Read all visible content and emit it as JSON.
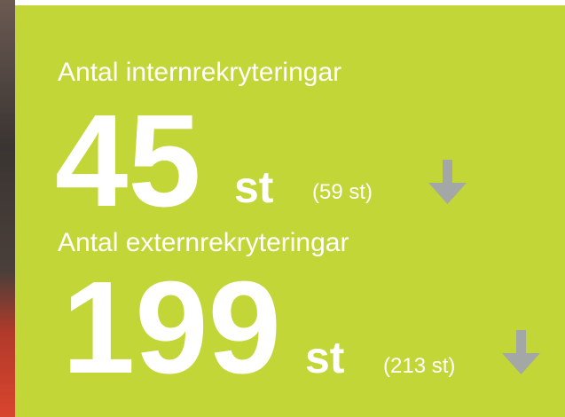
{
  "items": [
    {
      "label": "Antal internrekryteringar",
      "value": "45",
      "unit": "st",
      "previous": "(59 st)"
    },
    {
      "label": "Antal externrekryteringar",
      "value": "199",
      "unit": "st",
      "previous": "(213 st)"
    }
  ]
}
